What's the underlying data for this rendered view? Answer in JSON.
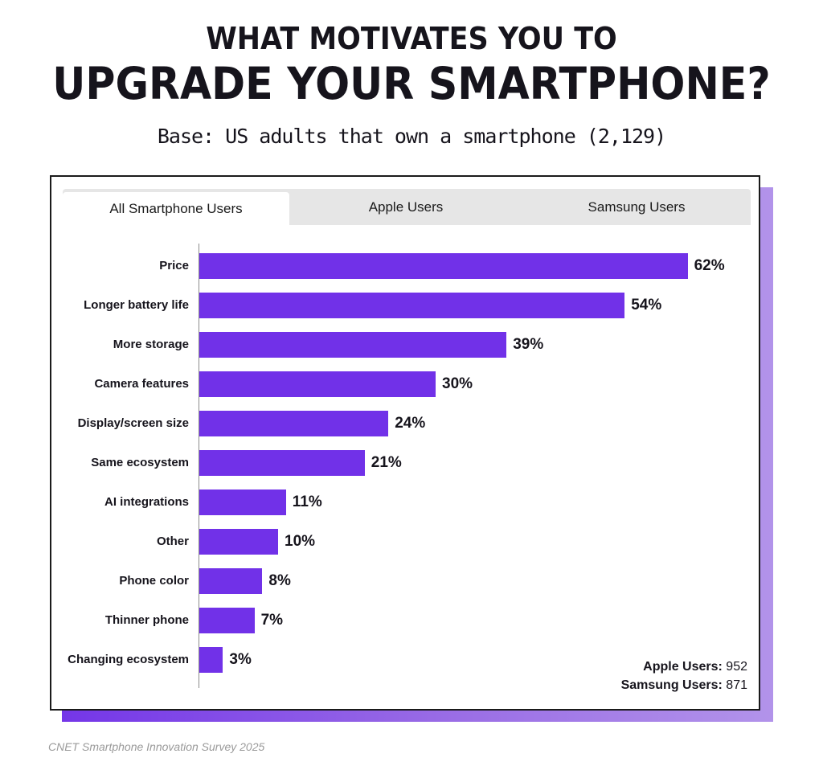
{
  "header": {
    "title_line1": "WHAT MOTIVATES YOU TO",
    "title_line2": "UPGRADE YOUR SMARTPHONE?",
    "subtitle": "Base: US adults that own a smartphone (2,129)"
  },
  "tabs": [
    {
      "label": "All Smartphone Users",
      "active": true
    },
    {
      "label": "Apple Users",
      "active": false
    },
    {
      "label": "Samsung Users",
      "active": false
    }
  ],
  "colors": {
    "bar": "#7131e8",
    "shadow_start": "#7436e8",
    "shadow_end": "#b293ea",
    "tab_bg": "#e6e6e6"
  },
  "chart_data": {
    "type": "bar",
    "orientation": "horizontal",
    "title": "What motivates you to upgrade your smartphone?",
    "subtitle": "Base: US adults that own a smartphone (2,129)",
    "categories": [
      "Price",
      "Longer battery life",
      "More storage",
      "Camera features",
      "Display/screen size",
      "Same ecosystem",
      "AI integrations",
      "Other",
      "Phone color",
      "Thinner phone",
      "Changing ecosystem"
    ],
    "values": [
      62,
      54,
      39,
      30,
      24,
      21,
      11,
      10,
      8,
      7,
      3
    ],
    "value_labels": [
      "62%",
      "54%",
      "39%",
      "30%",
      "24%",
      "21%",
      "11%",
      "10%",
      "8%",
      "7%",
      "3%"
    ],
    "xlabel": "",
    "ylabel": "",
    "unit": "%",
    "grid": false,
    "legend": null,
    "active_view": "All Smartphone Users"
  },
  "counts": {
    "apple_label": "Apple Users:",
    "apple_value": "952",
    "samsung_label": "Samsung Users:",
    "samsung_value": "871"
  },
  "footer": {
    "source": "CNET  Smartphone Innovation Survey 2025"
  }
}
